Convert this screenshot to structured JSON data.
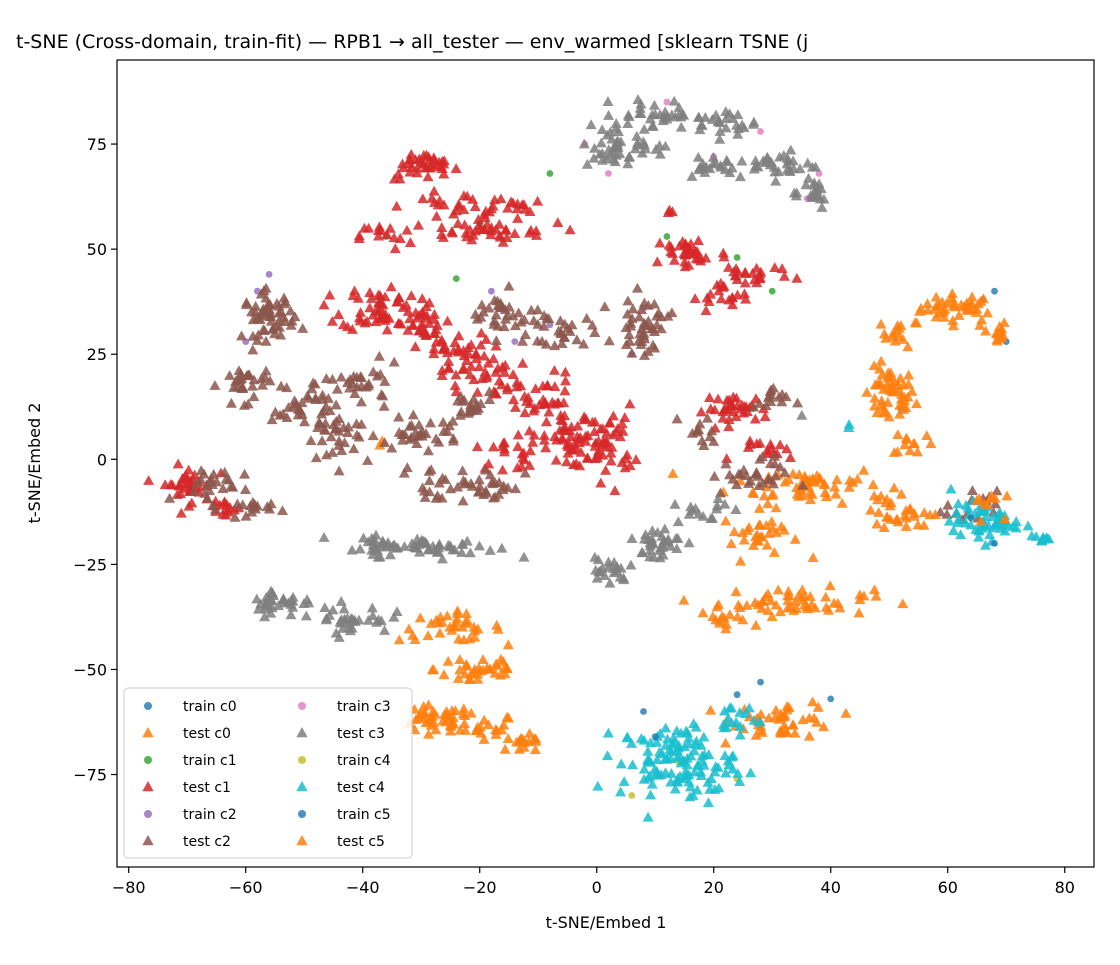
{
  "chart_data": {
    "type": "scatter",
    "title": "t-SNE (Cross-domain, train-fit) — RPB1 → all_tester — env_warmed [sklearn TSNE (j",
    "xlabel": "t-SNE/Embed 1",
    "ylabel": "t-SNE/Embed 2",
    "xlim": [
      -82,
      85
    ],
    "ylim": [
      -97,
      95
    ],
    "x_ticks": [
      -80,
      -60,
      -40,
      -20,
      0,
      20,
      40,
      60,
      80
    ],
    "y_ticks": [
      -75,
      -50,
      -25,
      0,
      25,
      50,
      75
    ],
    "x_tick_labels": [
      "−80",
      "−60",
      "−40",
      "−20",
      "0",
      "20",
      "40",
      "60",
      "80"
    ],
    "y_tick_labels": [
      "−75",
      "−50",
      "−25",
      "0",
      "25",
      "50",
      "75"
    ],
    "grid": false,
    "legend_placement": "lower-left",
    "legend_columns": 2,
    "series": [
      {
        "name": "train c0",
        "marker": "circle",
        "color": "#1f77b4",
        "points": [
          [
            66,
            38
          ],
          [
            68,
            40
          ],
          [
            52,
            12
          ],
          [
            70,
            28
          ],
          [
            28,
            -53
          ],
          [
            40,
            -57
          ],
          [
            8,
            -60
          ],
          [
            24,
            -56
          ]
        ]
      },
      {
        "name": "test c0",
        "marker": "triangle",
        "color": "#ff7f0e",
        "clusters": [
          {
            "center": [
              62,
              36
            ],
            "spread": [
              6,
              3
            ],
            "n": 40
          },
          {
            "center": [
              52,
              30
            ],
            "spread": [
              3,
              3
            ],
            "n": 15
          },
          {
            "center": [
              50,
              15
            ],
            "spread": [
              4,
              6
            ],
            "n": 50
          },
          {
            "center": [
              54,
              4
            ],
            "spread": [
              3,
              3
            ],
            "n": 12
          },
          {
            "center": [
              68,
              30
            ],
            "spread": [
              2,
              3
            ],
            "n": 15
          },
          {
            "center": [
              36,
              -6
            ],
            "spread": [
              12,
              4
            ],
            "n": 55
          },
          {
            "center": [
              28,
              -18
            ],
            "spread": [
              6,
              5
            ],
            "n": 30
          },
          {
            "center": [
              34,
              -34
            ],
            "spread": [
              12,
              3
            ],
            "n": 55
          },
          {
            "center": [
              22,
              -38
            ],
            "spread": [
              4,
              2
            ],
            "n": 12
          },
          {
            "center": [
              50,
              -12
            ],
            "spread": [
              4,
              3
            ],
            "n": 15
          },
          {
            "center": [
              -25,
              -40
            ],
            "spread": [
              8,
              3
            ],
            "n": 35
          },
          {
            "center": [
              -20,
              -50
            ],
            "spread": [
              7,
              4
            ],
            "n": 35
          },
          {
            "center": [
              -28,
              -62
            ],
            "spread": [
              6,
              3
            ],
            "n": 35
          },
          {
            "center": [
              -20,
              -64
            ],
            "spread": [
              6,
              3
            ],
            "n": 25
          },
          {
            "center": [
              -12,
              -68
            ],
            "spread": [
              3,
              2
            ],
            "n": 15
          },
          {
            "center": [
              32,
              -62
            ],
            "spread": [
              8,
              4
            ],
            "n": 45
          },
          {
            "center": [
              -37,
              3
            ],
            "spread": [
              1,
              1
            ],
            "n": 2
          }
        ]
      },
      {
        "name": "train c1",
        "marker": "circle",
        "color": "#2ca02c",
        "points": [
          [
            -30,
            70
          ],
          [
            -36,
            53
          ],
          [
            -20,
            56
          ],
          [
            12,
            53
          ],
          [
            24,
            48
          ],
          [
            -8,
            68
          ],
          [
            -24,
            43
          ],
          [
            30,
            40
          ]
        ]
      },
      {
        "name": "test c1",
        "marker": "triangle",
        "color": "#d62728",
        "clusters": [
          {
            "center": [
              -30,
              70
            ],
            "spread": [
              5,
              3
            ],
            "n": 25
          },
          {
            "center": [
              -24,
              60
            ],
            "spread": [
              8,
              3
            ],
            "n": 25
          },
          {
            "center": [
              -16,
              60
            ],
            "spread": [
              5,
              2
            ],
            "n": 15
          },
          {
            "center": [
              -20,
              54
            ],
            "spread": [
              12,
              2
            ],
            "n": 35
          },
          {
            "center": [
              -36,
              53
            ],
            "spread": [
              4,
              3
            ],
            "n": 15
          },
          {
            "center": [
              16,
              49
            ],
            "spread": [
              6,
              4
            ],
            "n": 35
          },
          {
            "center": [
              26,
              44
            ],
            "spread": [
              7,
              3
            ],
            "n": 25
          },
          {
            "center": [
              22,
              38
            ],
            "spread": [
              5,
              3
            ],
            "n": 15
          },
          {
            "center": [
              -37,
              36
            ],
            "spread": [
              6,
              5
            ],
            "n": 55
          },
          {
            "center": [
              -30,
              32
            ],
            "spread": [
              4,
              4
            ],
            "n": 25
          },
          {
            "center": [
              -25,
              26
            ],
            "spread": [
              6,
              4
            ],
            "n": 30
          },
          {
            "center": [
              -20,
              20
            ],
            "spread": [
              6,
              5
            ],
            "n": 35
          },
          {
            "center": [
              -10,
              14
            ],
            "spread": [
              6,
              6
            ],
            "n": 35
          },
          {
            "center": [
              -4,
              4
            ],
            "spread": [
              4,
              6
            ],
            "n": 40
          },
          {
            "center": [
              2,
              4
            ],
            "spread": [
              4,
              8
            ],
            "n": 45
          },
          {
            "center": [
              -14,
              2
            ],
            "spread": [
              6,
              4
            ],
            "n": 25
          },
          {
            "center": [
              -70,
              -6
            ],
            "spread": [
              4,
              4
            ],
            "n": 35
          },
          {
            "center": [
              -64,
              -12
            ],
            "spread": [
              3,
              2
            ],
            "n": 15
          },
          {
            "center": [
              24,
              12
            ],
            "spread": [
              5,
              3
            ],
            "n": 35
          },
          {
            "center": [
              30,
              2
            ],
            "spread": [
              5,
              2
            ],
            "n": 15
          },
          {
            "center": [
              13,
              59
            ],
            "spread": [
              1,
              1
            ],
            "n": 3
          },
          {
            "center": [
              -27,
              70
            ],
            "spread": [
              3,
              2
            ],
            "n": 12
          }
        ]
      },
      {
        "name": "train c2",
        "marker": "circle",
        "color": "#9467bd",
        "points": [
          [
            -58,
            40
          ],
          [
            -18,
            40
          ],
          [
            -8,
            32
          ],
          [
            8,
            36
          ],
          [
            -60,
            28
          ],
          [
            -56,
            44
          ],
          [
            -14,
            28
          ],
          [
            6,
            25
          ]
        ]
      },
      {
        "name": "test c2",
        "marker": "triangle",
        "color": "#8c564b",
        "clusters": [
          {
            "center": [
              -56,
              34
            ],
            "spread": [
              4,
              5
            ],
            "n": 55
          },
          {
            "center": [
              -60,
              18
            ],
            "spread": [
              4,
              4
            ],
            "n": 30
          },
          {
            "center": [
              -50,
              12
            ],
            "spread": [
              5,
              4
            ],
            "n": 30
          },
          {
            "center": [
              -44,
              5
            ],
            "spread": [
              6,
              6
            ],
            "n": 35
          },
          {
            "center": [
              -30,
              6
            ],
            "spread": [
              6,
              3
            ],
            "n": 30
          },
          {
            "center": [
              -40,
              18
            ],
            "spread": [
              6,
              4
            ],
            "n": 30
          },
          {
            "center": [
              -22,
              12
            ],
            "spread": [
              4,
              4
            ],
            "n": 20
          },
          {
            "center": [
              -16,
              34
            ],
            "spread": [
              6,
              5
            ],
            "n": 35
          },
          {
            "center": [
              -6,
              30
            ],
            "spread": [
              5,
              4
            ],
            "n": 25
          },
          {
            "center": [
              8,
              32
            ],
            "spread": [
              4,
              6
            ],
            "n": 45
          },
          {
            "center": [
              -28,
              -6
            ],
            "spread": [
              5,
              4
            ],
            "n": 20
          },
          {
            "center": [
              -18,
              -6
            ],
            "spread": [
              5,
              4
            ],
            "n": 25
          },
          {
            "center": [
              -66,
              -6
            ],
            "spread": [
              5,
              4
            ],
            "n": 25
          },
          {
            "center": [
              -60,
              -12
            ],
            "spread": [
              4,
              2
            ],
            "n": 15
          },
          {
            "center": [
              26,
              -4
            ],
            "spread": [
              6,
              4
            ],
            "n": 30
          },
          {
            "center": [
              30,
              14
            ],
            "spread": [
              3,
              3
            ],
            "n": 15
          },
          {
            "center": [
              64,
              -12
            ],
            "spread": [
              4,
              4
            ],
            "n": 15
          },
          {
            "center": [
              18,
              6
            ],
            "spread": [
              3,
              4
            ],
            "n": 12
          }
        ]
      },
      {
        "name": "train c3",
        "marker": "circle",
        "color": "#e377c2",
        "points": [
          [
            -2,
            75
          ],
          [
            12,
            85
          ],
          [
            28,
            78
          ],
          [
            38,
            68
          ],
          [
            2,
            68
          ],
          [
            36,
            62
          ],
          [
            20,
            72
          ]
        ]
      },
      {
        "name": "test c3",
        "marker": "triangle",
        "color": "#7f7f7f",
        "clusters": [
          {
            "center": [
              2,
              74
            ],
            "spread": [
              4,
              5
            ],
            "n": 30
          },
          {
            "center": [
              10,
              82
            ],
            "spread": [
              6,
              3
            ],
            "n": 35
          },
          {
            "center": [
              22,
              80
            ],
            "spread": [
              5,
              3
            ],
            "n": 25
          },
          {
            "center": [
              32,
              70
            ],
            "spread": [
              5,
              3
            ],
            "n": 30
          },
          {
            "center": [
              36,
              64
            ],
            "spread": [
              4,
              4
            ],
            "n": 20
          },
          {
            "center": [
              20,
              70
            ],
            "spread": [
              6,
              3
            ],
            "n": 20
          },
          {
            "center": [
              8,
              74
            ],
            "spread": [
              4,
              3
            ],
            "n": 15
          },
          {
            "center": [
              -28,
              -21
            ],
            "spread": [
              10,
              2
            ],
            "n": 55
          },
          {
            "center": [
              -38,
              -20
            ],
            "spread": [
              4,
              2
            ],
            "n": 15
          },
          {
            "center": [
              -54,
              -34
            ],
            "spread": [
              5,
              3
            ],
            "n": 35
          },
          {
            "center": [
              -42,
              -38
            ],
            "spread": [
              6,
              3
            ],
            "n": 35
          },
          {
            "center": [
              2,
              -27
            ],
            "spread": [
              3,
              3
            ],
            "n": 20
          },
          {
            "center": [
              10,
              -20
            ],
            "spread": [
              5,
              4
            ],
            "n": 35
          },
          {
            "center": [
              18,
              -12
            ],
            "spread": [
              4,
              3
            ],
            "n": 15
          },
          {
            "center": [
              34,
              10
            ],
            "spread": [
              1,
              1
            ],
            "n": 1
          }
        ]
      },
      {
        "name": "train c4",
        "marker": "circle",
        "color": "#bcbd22",
        "points": [
          [
            14,
            -72
          ],
          [
            6,
            -80
          ],
          [
            24,
            -76
          ]
        ]
      },
      {
        "name": "test c4",
        "marker": "triangle",
        "color": "#17becf",
        "clusters": [
          {
            "center": [
              14,
              -72
            ],
            "spread": [
              9,
              8
            ],
            "n": 120
          },
          {
            "center": [
              24,
              -62
            ],
            "spread": [
              4,
              3
            ],
            "n": 15
          },
          {
            "center": [
              66,
              -15
            ],
            "spread": [
              5,
              4
            ],
            "n": 55
          },
          {
            "center": [
              76,
              -19
            ],
            "spread": [
              2,
              1
            ],
            "n": 10
          },
          {
            "center": [
              43,
              8
            ],
            "spread": [
              1,
              1
            ],
            "n": 2
          }
        ]
      },
      {
        "name": "train c5",
        "marker": "circle",
        "color": "#1f77b4",
        "points": [
          [
            64,
            -14
          ],
          [
            68,
            -20
          ],
          [
            10,
            -66
          ]
        ]
      },
      {
        "name": "test c5",
        "marker": "triangle",
        "color": "#ff7f0e",
        "clusters": [
          {
            "center": [
              54,
              -14
            ],
            "spread": [
              4,
              3
            ],
            "n": 15
          },
          {
            "center": [
              66,
              -10
            ],
            "spread": [
              3,
              3
            ],
            "n": 10
          }
        ]
      }
    ]
  }
}
